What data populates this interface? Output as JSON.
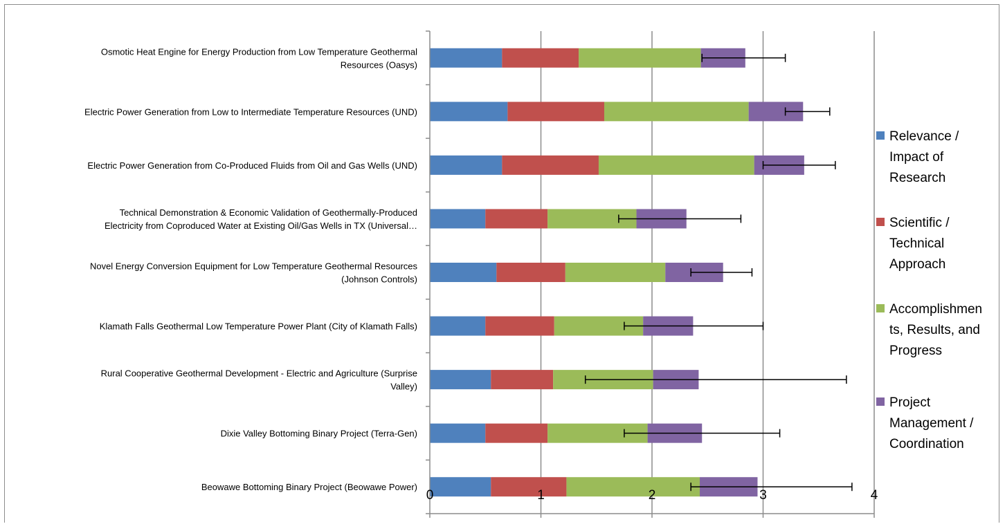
{
  "chart_data": {
    "type": "bar",
    "orientation": "horizontal",
    "stacked": true,
    "categories": [
      [
        "Osmotic Heat Engine for Energy Production from Low Temperature Geothermal",
        "Resources (Oasys)"
      ],
      [
        "Electric Power Generation from Low to Intermediate Temperature Resources (UND)"
      ],
      [
        "Electric Power Generation from Co-Produced Fluids from Oil and Gas Wells (UND)"
      ],
      [
        "Technical Demonstration & Economic Validation of Geothermally-Produced",
        "Electricity from Coproduced Water at Existing Oil/Gas Wells in TX (Universal…"
      ],
      [
        "Novel Energy Conversion Equipment for Low Temperature Geothermal Resources",
        "(Johnson Controls)"
      ],
      [
        "Klamath Falls Geothermal Low Temperature Power Plant (City of Klamath Falls)"
      ],
      [
        "Rural Cooperative Geothermal Development - Electric and Agriculture (Surprise",
        "Valley)"
      ],
      [
        "Dixie Valley Bottoming Binary Project (Terra-Gen)"
      ],
      [
        "Beowawe Bottoming Binary Project (Beowawe Power)"
      ]
    ],
    "series": [
      {
        "name": [
          "Relevance /",
          "Impact of",
          "Research"
        ],
        "color": "#4f81bd",
        "values": [
          0.65,
          0.7,
          0.65,
          0.5,
          0.6,
          0.5,
          0.55,
          0.5,
          0.55
        ]
      },
      {
        "name": [
          "Scientific /",
          "Technical",
          "Approach"
        ],
        "color": "#c0504d",
        "values": [
          0.69,
          0.87,
          0.87,
          0.56,
          0.62,
          0.62,
          0.56,
          0.56,
          0.68
        ]
      },
      {
        "name": [
          "Accomplishmen",
          "ts, Results, and",
          "Progress"
        ],
        "color": "#9bbb59",
        "values": [
          1.1,
          1.3,
          1.4,
          0.8,
          0.9,
          0.8,
          0.9,
          0.9,
          1.2
        ]
      },
      {
        "name": [
          "Project",
          "Management /",
          "Coordination"
        ],
        "color": "#8064a2",
        "values": [
          0.4,
          0.49,
          0.45,
          0.45,
          0.52,
          0.45,
          0.41,
          0.49,
          0.52
        ]
      }
    ],
    "error_bars": [
      [
        2.45,
        3.2
      ],
      [
        3.2,
        3.6
      ],
      [
        3.0,
        3.65
      ],
      [
        1.7,
        2.8
      ],
      [
        2.35,
        2.9
      ],
      [
        1.75,
        3.0
      ],
      [
        1.4,
        3.75
      ],
      [
        1.75,
        3.15
      ],
      [
        2.35,
        3.8
      ]
    ],
    "xlim": [
      0,
      4
    ],
    "xticks": [
      "0",
      "1",
      "2",
      "3",
      "4"
    ],
    "grid": "vertical",
    "legend": "right",
    "title": "",
    "xlabel": "",
    "ylabel": ""
  }
}
